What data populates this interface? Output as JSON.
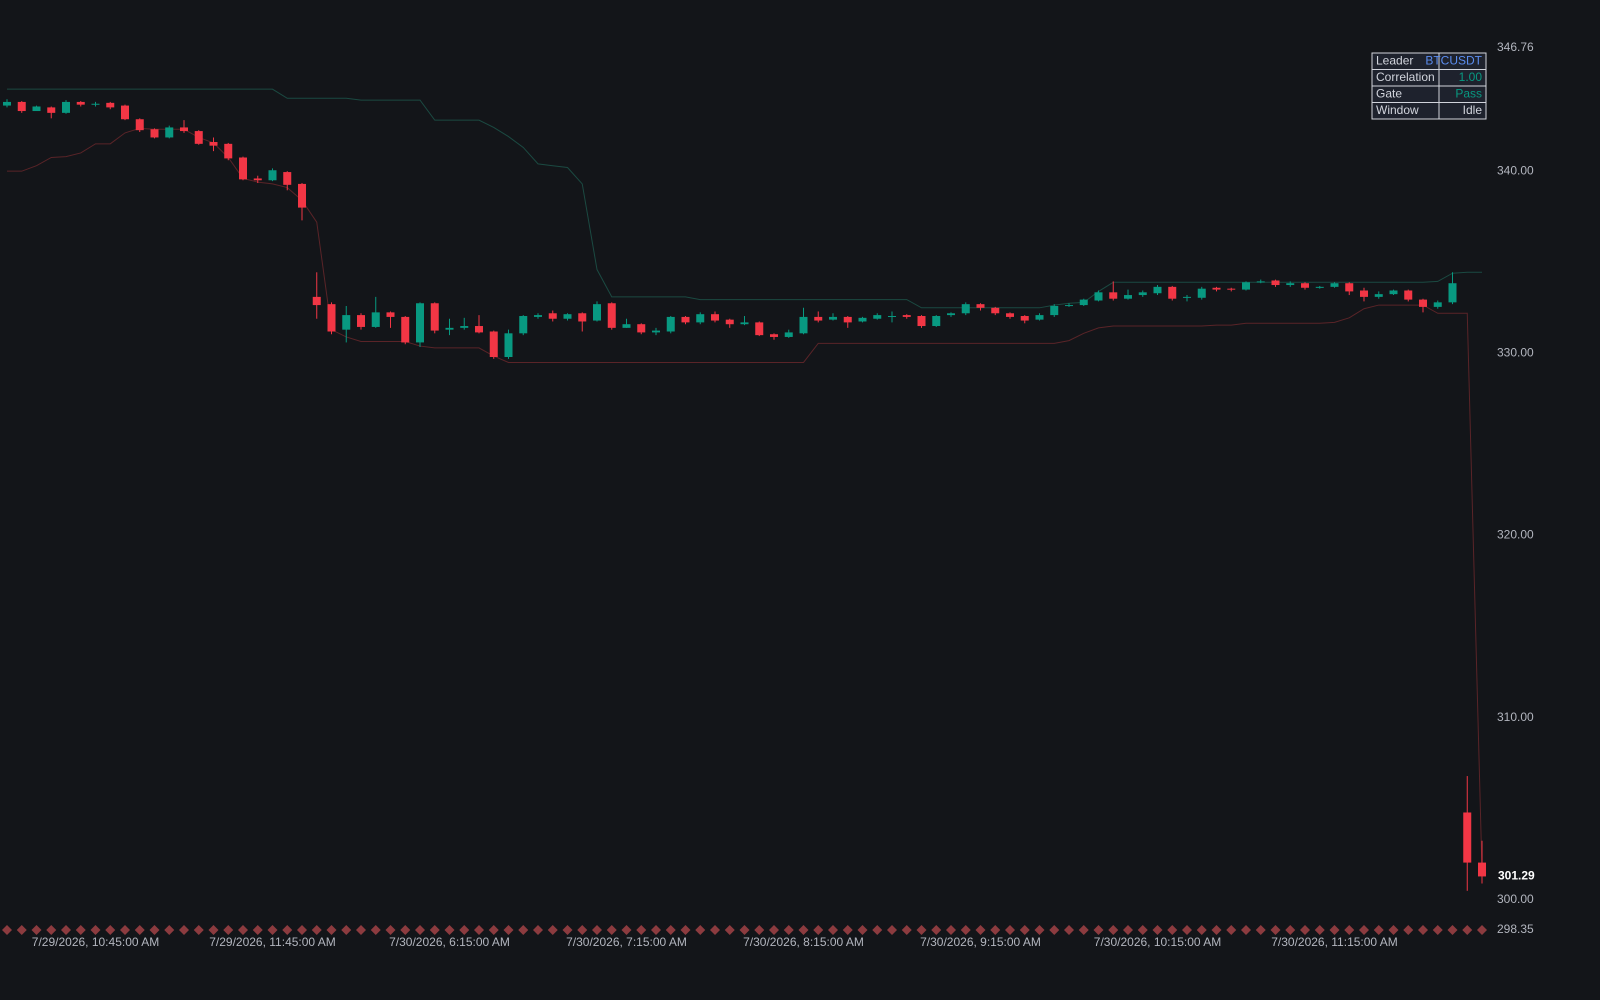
{
  "chart_data": {
    "type": "candlestick",
    "up_color": "#089981",
    "down_color": "#f23645",
    "categories": [
      null,
      null,
      null,
      null,
      null,
      null,
      "7/29/2026, 10:45:00 AM",
      null,
      null,
      null,
      null,
      null,
      null,
      null,
      null,
      null,
      null,
      null,
      "7/29/2026, 11:45:00 AM",
      null,
      null,
      null,
      null,
      null,
      null,
      null,
      null,
      null,
      null,
      null,
      "7/30/2026, 6:15:00 AM",
      null,
      null,
      null,
      null,
      null,
      null,
      null,
      null,
      null,
      null,
      null,
      "7/30/2026, 7:15:00 AM",
      null,
      null,
      null,
      null,
      null,
      null,
      null,
      null,
      null,
      null,
      null,
      "7/30/2026, 8:15:00 AM",
      null,
      null,
      null,
      null,
      null,
      null,
      null,
      null,
      null,
      null,
      null,
      "7/30/2026, 9:15:00 AM",
      null,
      null,
      null,
      null,
      null,
      null,
      null,
      null,
      null,
      null,
      null,
      "7/30/2026, 10:15:00 AM",
      null,
      null,
      null,
      null,
      null,
      null,
      null,
      null,
      null,
      null,
      null,
      "7/30/2026, 11:15:00 AM",
      null,
      null,
      null,
      null,
      null,
      null,
      null,
      null,
      null,
      null
    ],
    "open": [
      343.6,
      343.8,
      343.3,
      343.5,
      343.2,
      343.8,
      343.65,
      343.75,
      343.6,
      342.85,
      342.3,
      341.85,
      342.4,
      342.2,
      341.6,
      341.5,
      340.75,
      339.6,
      339.5,
      339.95,
      339.3,
      333.1,
      332.7,
      331.3,
      332.1,
      331.45,
      332.25,
      332.0,
      330.6,
      332.75,
      331.3,
      331.4,
      331.5,
      331.2,
      329.8,
      331.1,
      332.0,
      332.2,
      331.9,
      332.2,
      331.8,
      332.75,
      331.4,
      331.6,
      331.15,
      331.2,
      332.0,
      331.7,
      332.15,
      331.85,
      331.6,
      331.7,
      331.05,
      330.9,
      331.1,
      332.0,
      331.85,
      332.0,
      331.75,
      331.9,
      332.0,
      332.1,
      332.05,
      331.5,
      332.1,
      332.2,
      332.7,
      332.5,
      332.2,
      332.05,
      331.85,
      332.1,
      332.6,
      332.65,
      332.9,
      333.35,
      333.0,
      333.2,
      333.3,
      333.65,
      333.05,
      333.05,
      333.6,
      333.55,
      333.5,
      333.9,
      334.0,
      333.75,
      333.85,
      333.6,
      333.65,
      333.85,
      333.45,
      333.1,
      333.25,
      333.45,
      332.95,
      332.55,
      332.8,
      304.8,
      302.05
    ],
    "high": [
      343.95,
      343.85,
      343.6,
      343.55,
      343.9,
      343.85,
      343.8,
      343.8,
      343.65,
      342.9,
      342.35,
      342.5,
      342.8,
      342.25,
      341.85,
      341.55,
      340.8,
      339.75,
      340.15,
      340.0,
      339.35,
      334.45,
      332.8,
      332.6,
      332.2,
      333.1,
      332.3,
      332.05,
      332.8,
      332.8,
      331.9,
      331.95,
      332.1,
      331.25,
      331.3,
      332.1,
      332.2,
      332.35,
      332.2,
      332.25,
      332.85,
      332.8,
      331.9,
      331.65,
      331.4,
      332.05,
      332.05,
      332.25,
      332.3,
      331.9,
      332.05,
      331.75,
      331.1,
      331.3,
      332.5,
      332.3,
      332.2,
      332.05,
      332.0,
      332.2,
      332.3,
      332.15,
      332.1,
      332.1,
      332.25,
      332.8,
      332.75,
      332.55,
      332.25,
      332.1,
      332.2,
      332.7,
      332.75,
      333.0,
      333.45,
      333.95,
      333.5,
      333.45,
      333.75,
      333.7,
      333.2,
      333.65,
      333.65,
      333.6,
      333.95,
      334.05,
      334.05,
      333.95,
      333.9,
      333.7,
      333.9,
      333.9,
      333.6,
      333.4,
      333.5,
      333.5,
      333.0,
      332.9,
      334.45,
      306.8,
      303.25
    ],
    "low": [
      343.5,
      343.2,
      343.45,
      342.9,
      343.15,
      343.55,
      343.55,
      343.4,
      342.8,
      342.15,
      341.8,
      341.8,
      342.1,
      341.45,
      341.1,
      340.6,
      339.5,
      339.35,
      339.45,
      338.95,
      337.3,
      331.9,
      331.05,
      330.6,
      331.3,
      331.4,
      331.4,
      330.5,
      330.35,
      331.1,
      331.0,
      331.3,
      331.1,
      329.7,
      329.7,
      331.0,
      331.9,
      331.75,
      331.8,
      331.2,
      331.75,
      331.3,
      331.4,
      331.05,
      331.0,
      331.1,
      331.6,
      331.6,
      331.7,
      331.4,
      331.55,
      330.95,
      330.75,
      330.85,
      331.05,
      331.7,
      331.8,
      331.4,
      331.7,
      331.85,
      331.7,
      331.9,
      331.4,
      331.45,
      332.0,
      332.1,
      332.35,
      332.1,
      331.9,
      331.65,
      331.8,
      332.0,
      332.55,
      332.6,
      332.85,
      332.9,
      332.95,
      333.1,
      333.2,
      332.9,
      332.85,
      332.95,
      333.4,
      333.4,
      333.45,
      333.85,
      333.65,
      333.65,
      333.5,
      333.55,
      333.6,
      333.2,
      332.85,
      333.0,
      333.2,
      332.85,
      332.25,
      332.45,
      332.7,
      300.5,
      300.9
    ],
    "close": [
      343.8,
      343.3,
      343.55,
      343.2,
      343.8,
      343.65,
      343.7,
      343.5,
      342.85,
      342.25,
      341.85,
      342.4,
      342.2,
      341.5,
      341.4,
      340.7,
      339.55,
      339.5,
      340.05,
      339.25,
      338.0,
      332.65,
      331.2,
      332.1,
      331.45,
      332.25,
      332.0,
      330.6,
      332.75,
      331.25,
      331.4,
      331.5,
      331.15,
      329.8,
      331.1,
      332.05,
      332.1,
      331.9,
      332.15,
      331.75,
      332.7,
      331.4,
      331.6,
      331.15,
      331.25,
      332.0,
      331.7,
      332.15,
      331.8,
      331.6,
      331.7,
      331.0,
      330.9,
      331.15,
      332.0,
      331.8,
      332.0,
      331.7,
      331.95,
      332.1,
      332.05,
      332.0,
      331.5,
      332.05,
      332.2,
      332.7,
      332.5,
      332.2,
      332.0,
      331.8,
      332.1,
      332.6,
      332.65,
      332.95,
      333.35,
      333.0,
      333.2,
      333.35,
      333.65,
      333.0,
      333.1,
      333.55,
      333.5,
      333.5,
      333.9,
      333.95,
      333.75,
      333.85,
      333.6,
      333.65,
      333.85,
      333.4,
      333.1,
      333.25,
      333.45,
      332.95,
      332.55,
      332.8,
      333.85,
      302.05,
      301.29
    ],
    "upper": [
      344.5,
      344.5,
      344.5,
      344.5,
      344.5,
      344.5,
      344.5,
      344.5,
      344.5,
      344.5,
      344.5,
      344.5,
      344.5,
      344.5,
      344.5,
      344.5,
      344.5,
      344.5,
      344.5,
      344.0,
      344.0,
      344.0,
      344.0,
      344.0,
      343.9,
      343.9,
      343.9,
      343.9,
      343.9,
      342.8,
      342.8,
      342.8,
      342.8,
      342.4,
      341.9,
      341.3,
      340.4,
      340.3,
      340.2,
      339.3,
      334.6,
      333.1,
      333.1,
      333.1,
      333.1,
      333.1,
      333.1,
      332.95,
      332.95,
      332.95,
      332.95,
      332.95,
      332.95,
      332.95,
      332.95,
      332.95,
      332.95,
      332.95,
      332.95,
      332.95,
      332.95,
      332.95,
      332.5,
      332.5,
      332.5,
      332.5,
      332.5,
      332.5,
      332.5,
      332.5,
      332.5,
      332.65,
      332.75,
      332.8,
      333.4,
      333.9,
      333.9,
      333.9,
      333.9,
      333.9,
      333.9,
      333.9,
      333.9,
      333.9,
      333.9,
      333.9,
      333.9,
      333.9,
      333.9,
      333.9,
      333.9,
      333.9,
      333.9,
      333.9,
      333.9,
      333.9,
      333.9,
      333.95,
      334.4,
      334.45,
      334.45
    ],
    "lower": [
      340.0,
      340.0,
      340.3,
      340.75,
      340.8,
      341.0,
      341.5,
      341.5,
      342.1,
      342.35,
      342.3,
      342.3,
      342.3,
      341.85,
      341.55,
      340.75,
      339.6,
      339.4,
      339.3,
      339.1,
      338.4,
      337.2,
      331.3,
      330.9,
      330.65,
      330.65,
      330.65,
      330.65,
      330.4,
      330.3,
      330.3,
      330.3,
      330.3,
      329.85,
      329.5,
      329.5,
      329.5,
      329.5,
      329.5,
      329.5,
      329.5,
      329.5,
      329.5,
      329.5,
      329.5,
      329.5,
      329.5,
      329.5,
      329.5,
      329.5,
      329.5,
      329.5,
      329.5,
      329.5,
      329.5,
      330.55,
      330.55,
      330.55,
      330.55,
      330.55,
      330.55,
      330.55,
      330.55,
      330.55,
      330.55,
      330.55,
      330.55,
      330.55,
      330.55,
      330.55,
      330.55,
      330.55,
      330.7,
      331.1,
      331.4,
      331.5,
      331.5,
      331.5,
      331.5,
      331.5,
      331.5,
      331.5,
      331.55,
      331.55,
      331.65,
      331.65,
      331.65,
      331.65,
      331.65,
      331.65,
      331.7,
      331.95,
      332.45,
      332.65,
      332.65,
      332.65,
      332.65,
      332.2,
      332.2,
      332.2,
      301.6
    ],
    "upper_color": "#1b4a42",
    "lower_color": "#5a2428",
    "ylim": [
      298.35,
      346.76
    ],
    "yticks": [
      298.35,
      {
        "value": 300,
        "label": "300.00"
      },
      {
        "value": 310,
        "label": "310.00"
      },
      {
        "value": 320,
        "label": "320.00"
      },
      {
        "value": 330,
        "label": "330.00"
      },
      {
        "value": 340,
        "label": "340.00"
      },
      346.76
    ],
    "table": [
      {
        "label": "Leader",
        "value": "BTCUSDT",
        "color": "#5b8def"
      },
      {
        "label": "Correlation",
        "value": "1.00",
        "color": "#089981"
      },
      {
        "label": "Gate",
        "value": "Pass",
        "color": "#089981"
      },
      {
        "label": "Window",
        "value": "Idle",
        "color": "#d1d4dc"
      }
    ]
  }
}
